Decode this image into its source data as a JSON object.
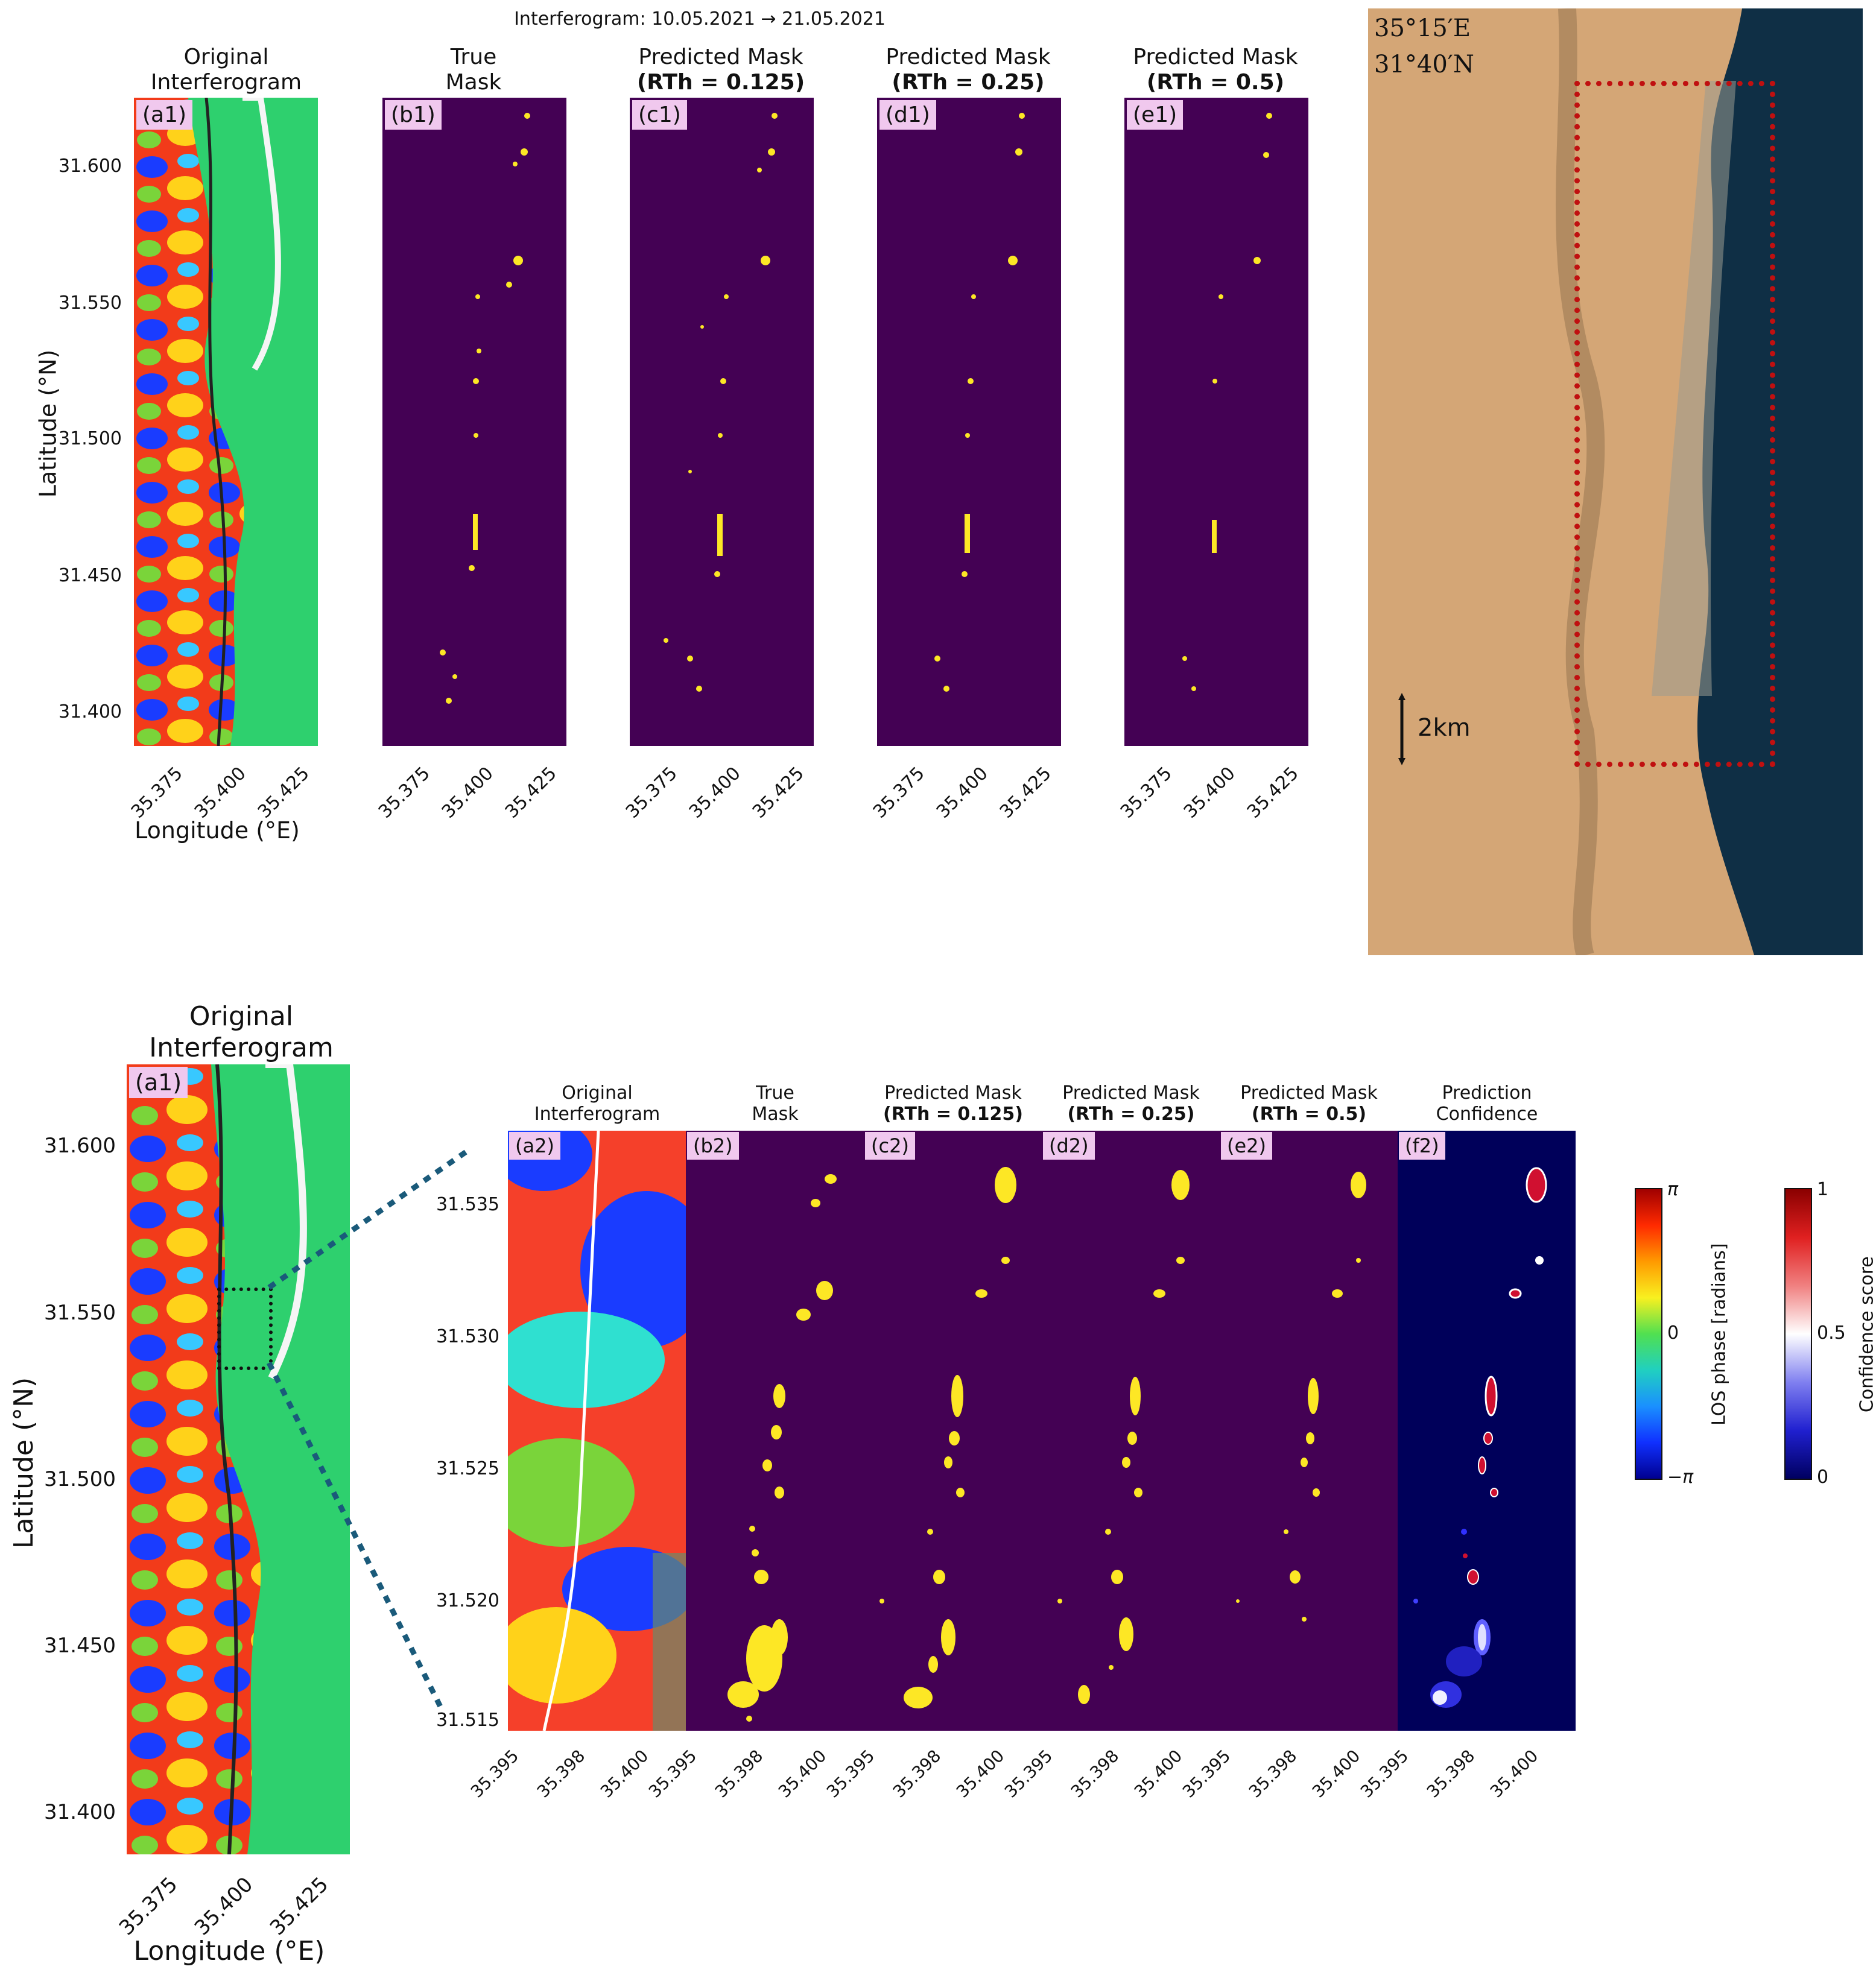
{
  "top": {
    "suptitle": "Interferogram: 10.05.2021 → 21.05.2021",
    "titles": [
      {
        "l1": "Original",
        "l2": "Interferogram",
        "bold2": false
      },
      {
        "l1": "True",
        "l2": "Mask",
        "bold2": false
      },
      {
        "l1": "Predicted Mask",
        "l2": "(RTh = 0.125)",
        "bold2": true
      },
      {
        "l1": "Predicted Mask",
        "l2": "(RTh = 0.25)",
        "bold2": true
      },
      {
        "l1": "Predicted Mask",
        "l2": "(RTh = 0.5)",
        "bold2": true
      }
    ],
    "tags": [
      "(a1)",
      "(b1)",
      "(c1)",
      "(d1)",
      "(e1)"
    ],
    "yticks": [
      "31.600",
      "31.550",
      "31.500",
      "31.450",
      "31.400"
    ],
    "xticks": [
      "35.375",
      "35.400",
      "35.425"
    ],
    "ylabel": "Latitude (°N)",
    "xlabel": "Longitude (°E)"
  },
  "map": {
    "lon": "35°15′E",
    "lat": "31°40′N",
    "scale": "2km"
  },
  "bottom": {
    "title_l1": "Original",
    "title_l2": "Interferogram",
    "tag": "(a1)",
    "yticks": [
      "31.600",
      "31.550",
      "31.500",
      "31.450",
      "31.400"
    ],
    "xticks": [
      "35.375",
      "35.400",
      "35.425"
    ],
    "ylabel": "Latitude (°N)",
    "xlabel": "Longitude (°E)"
  },
  "zoom": {
    "titles": [
      {
        "l1": "Original",
        "l2": "Interferogram",
        "bold2": false
      },
      {
        "l1": "True",
        "l2": "Mask",
        "bold2": false
      },
      {
        "l1": "Predicted Mask",
        "l2": "(RTh = 0.125)",
        "bold2": true
      },
      {
        "l1": "Predicted Mask",
        "l2": "(RTh = 0.25)",
        "bold2": true
      },
      {
        "l1": "Predicted Mask",
        "l2": "(RTh = 0.5)",
        "bold2": true
      },
      {
        "l1": "Prediction",
        "l2": "Confidence",
        "bold2": false
      }
    ],
    "tags": [
      "(a2)",
      "(b2)",
      "(c2)",
      "(d2)",
      "(e2)",
      "(f2)"
    ],
    "yticks": [
      "31.535",
      "31.530",
      "31.525",
      "31.520",
      "31.515"
    ],
    "xticks": [
      "35.395",
      "35.398",
      "35.400"
    ]
  },
  "colorbars": {
    "phase": {
      "top": "π",
      "mid": "0",
      "bottom": "−π",
      "label": "LOS phase [radians]"
    },
    "confidence": {
      "top": "1",
      "mid": "0.5",
      "bottom": "0",
      "label": "Confidence score"
    }
  },
  "colors": {
    "mask_bg": "#440154",
    "mask_fg": "#fde725",
    "conf_bg": "#00005a"
  }
}
